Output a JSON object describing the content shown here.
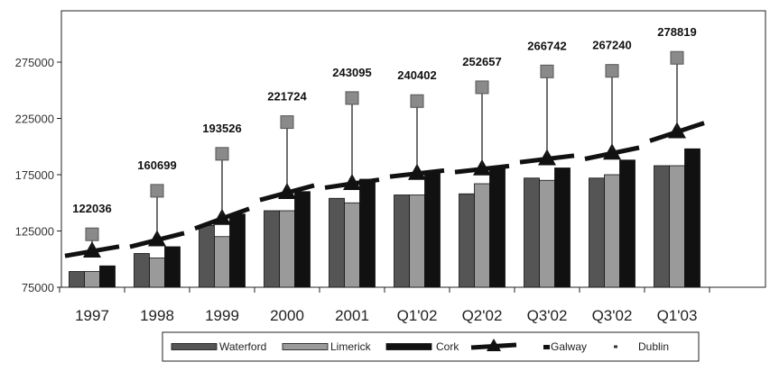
{
  "chart_data": {
    "type": "bar",
    "title": "",
    "xlabel": "",
    "ylabel": "",
    "categories": [
      "1997",
      "1998",
      "1999",
      "2000",
      "2001",
      "Q1'02",
      "Q2'02",
      "Q3'02",
      "Q3'02",
      "Q1'03"
    ],
    "ylim": [
      75000,
      300000
    ],
    "yticks": [
      75000,
      125000,
      175000,
      225000,
      275000
    ],
    "grid": false,
    "legend_position": "bottom",
    "series": [
      {
        "name": "Waterford",
        "kind": "bar",
        "color": "#555555",
        "values": [
          89000,
          105000,
          130000,
          143000,
          154000,
          157000,
          158000,
          172000,
          172000,
          183000
        ]
      },
      {
        "name": "Limerick",
        "kind": "bar",
        "color": "#9a9a9a",
        "values": [
          89000,
          101000,
          120000,
          143000,
          150000,
          157000,
          167000,
          170000,
          175000,
          183000
        ]
      },
      {
        "name": "Cork",
        "kind": "bar",
        "color": "#111111",
        "values": [
          94000,
          111000,
          140000,
          160000,
          171000,
          178000,
          182000,
          181000,
          188000,
          198000
        ]
      },
      {
        "name": "Galway",
        "kind": "line-triangle",
        "color": "#111111",
        "values": [
          107000,
          117000,
          136000,
          159000,
          167000,
          176000,
          180000,
          189000,
          194000,
          213000
        ]
      },
      {
        "name": "Dublin",
        "kind": "marker-square",
        "color": "#8a8a8a",
        "values": [
          122036,
          160699,
          193526,
          221724,
          243095,
          240402,
          252657,
          266742,
          267240,
          278819
        ],
        "labels": [
          "122036",
          "160699",
          "193526",
          "221724",
          "243095",
          "240402",
          "252657",
          "266742",
          "267240",
          "278819"
        ]
      }
    ]
  }
}
